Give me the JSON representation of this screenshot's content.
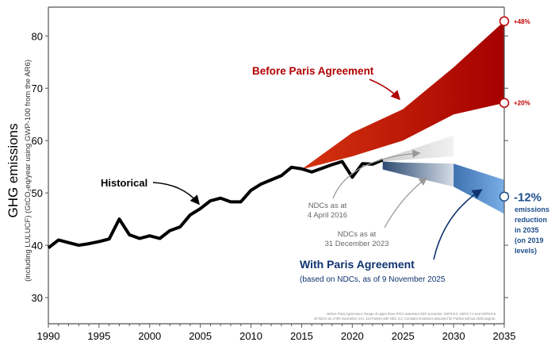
{
  "chart_data": {
    "type": "line",
    "title": "",
    "xlabel": "",
    "ylabel": "GHG emissions",
    "ylabel_sub": "(including LULUCF) (GtCO₂eq/year using GWP-100 from the AR6)",
    "xlim": [
      1990,
      2035
    ],
    "ylim": [
      25,
      85.5
    ],
    "xticks": [
      1990,
      1995,
      2000,
      2005,
      2010,
      2015,
      2020,
      2025,
      2030,
      2035
    ],
    "yticks": [
      30,
      40,
      50,
      60,
      70,
      80
    ],
    "historical": {
      "name": "Historical",
      "x": [
        1990,
        1991,
        1992,
        1993,
        1994,
        1995,
        1996,
        1997,
        1998,
        1999,
        2000,
        2001,
        2002,
        2003,
        2004,
        2005,
        2006,
        2007,
        2008,
        2009,
        2010,
        2011,
        2012,
        2013,
        2014,
        2015,
        2016,
        2017,
        2018,
        2019,
        2020,
        2021,
        2022,
        2023
      ],
      "y": [
        39.5,
        41,
        40.5,
        40,
        40.3,
        40.7,
        41.2,
        45,
        42,
        41.3,
        41.8,
        41.3,
        42.8,
        43.5,
        45.8,
        47,
        48.5,
        49,
        48.3,
        48.3,
        50.5,
        51.7,
        52.5,
        53.3,
        54.9,
        54.6,
        54,
        54.7,
        55.4,
        56,
        53,
        55.6,
        55.5,
        56.3
      ]
    },
    "bands": [
      {
        "name": "Before Paris Agreement",
        "x": [
          2015,
          2020,
          2025,
          2030,
          2035
        ],
        "upper": [
          54.5,
          61.5,
          66,
          74,
          82.8
        ],
        "lower": [
          54.5,
          57,
          60,
          65,
          67.2
        ],
        "color_start": "#d4330f",
        "color_end": "#a50000"
      },
      {
        "name": "NDCs as at 4 April 2016",
        "x": [
          2023,
          2030
        ],
        "upper": [
          56.5,
          61
        ],
        "lower": [
          56,
          57
        ],
        "color_start": "#cccccc",
        "color_end": "#f2f2f2"
      },
      {
        "name": "NDCs as at 31 December 2023",
        "x": [
          2023,
          2025,
          2030
        ],
        "upper": [
          56,
          55.8,
          55.6
        ],
        "lower": [
          54.5,
          53.5,
          51.2
        ],
        "color_start": "#2b4a72",
        "color_end": "#d5dde6"
      },
      {
        "name": "With Paris Agreement",
        "x": [
          2030,
          2035
        ],
        "upper": [
          55.6,
          52.5
        ],
        "lower": [
          51.2,
          46
        ],
        "color_start": "#3e72b0",
        "color_end": "#7aaee6"
      }
    ],
    "markers": [
      {
        "x": 2035,
        "y": 82.8,
        "label": "+48%",
        "color": "#c00000"
      },
      {
        "x": 2035,
        "y": 67.2,
        "label": "+20%",
        "color": "#c00000"
      },
      {
        "x": 2035,
        "y": 49.3,
        "label": "-12%",
        "color": "#1f4e8c"
      }
    ],
    "annotations": {
      "historical": "Historical",
      "before_paris": "Before Paris Agreement",
      "ndc2016_line1": "NDCs as at",
      "ndc2016_line2": "4 April 2016",
      "ndc2023_line1": "NDCs as at",
      "ndc2023_line2": "31 December 2023",
      "with_paris": "With Paris Agreement",
      "with_paris_sub": "(based on NDCs, as of 9 November 2025",
      "reduction_lines": [
        "emissions",
        "reduction",
        "in 2035",
        "(on 2019",
        "levels)"
      ],
      "footnote1": "Before Paris Agreement: Range of upper three IPCC assessed SSP scenarios: SSP4-6.0, SSP3-7.0 and SSP5-8.5",
      "footnote2": "All NDCs as of 9th November, incl. 113 Parties with NDC 3.0. Constant emissions assumed for Parties without 2035 targets."
    }
  }
}
